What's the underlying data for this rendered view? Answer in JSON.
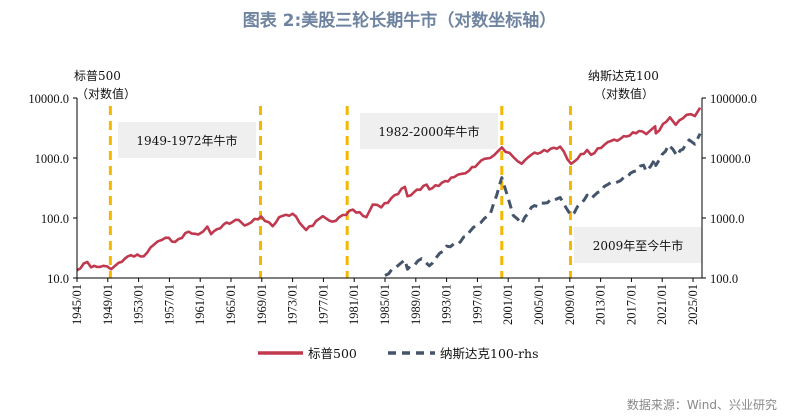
{
  "title": "图表 2:美股三轮长期牛市（对数坐标轴）",
  "source": "数据来源：Wind、兴业研究",
  "chart_data": {
    "type": "line",
    "title": "图表 2:美股三轮长期牛市（对数坐标轴）",
    "left_axis": {
      "label_line1": "标普500",
      "label_line2": "（对数值）",
      "scale": "log",
      "range": [
        10,
        10000
      ],
      "ticks": [
        "10000.0",
        "1000.0",
        "100.0",
        "10.0"
      ],
      "tick_values": [
        10000,
        1000,
        100,
        10
      ]
    },
    "right_axis": {
      "label_line1": "纳斯达克100",
      "label_line2": "（对数值）",
      "scale": "log",
      "range": [
        100,
        100000
      ],
      "ticks": [
        "100000.0",
        "10000.0",
        "1000.0",
        "100.0"
      ],
      "tick_values": [
        100000,
        10000,
        1000,
        100
      ]
    },
    "x_range": [
      "1945-01",
      "2026-03"
    ],
    "x_ticks": [
      "1945/01",
      "1949/01",
      "1953/01",
      "1957/01",
      "1961/01",
      "1965/01",
      "1969/01",
      "1973/01",
      "1977/01",
      "1981/01",
      "1985/01",
      "1989/01",
      "1993/01",
      "1997/01",
      "2001/01",
      "2005/01",
      "2009/01",
      "2013/01",
      "2017/01",
      "2021/01",
      "2025/01"
    ],
    "legend_position": "bottom",
    "grid": false,
    "series": [
      {
        "name": "标普500",
        "axis": "left",
        "color": "#c0394f",
        "style": "solid",
        "points": [
          [
            "1945-01",
            13.5
          ],
          [
            "1946-05",
            18.5
          ],
          [
            "1946-11",
            15
          ],
          [
            "1948-06",
            16
          ],
          [
            "1949-06",
            14
          ],
          [
            "1950-06",
            18
          ],
          [
            "1952-01",
            24
          ],
          [
            "1953-09",
            23
          ],
          [
            "1955-01",
            36
          ],
          [
            "1956-07",
            47
          ],
          [
            "1957-10",
            40
          ],
          [
            "1959-07",
            59
          ],
          [
            "1960-10",
            53
          ],
          [
            "1961-12",
            72
          ],
          [
            "1962-06",
            54
          ],
          [
            "1964-01",
            77
          ],
          [
            "1966-01",
            93
          ],
          [
            "1966-10",
            75
          ],
          [
            "1968-12",
            106
          ],
          [
            "1970-06",
            73
          ],
          [
            "1971-04",
            103
          ],
          [
            "1973-01",
            118
          ],
          [
            "1974-10",
            63
          ],
          [
            "1976-12",
            107
          ],
          [
            "1978-03",
            87
          ],
          [
            "1980-11",
            138
          ],
          [
            "1982-08",
            103
          ],
          [
            "1983-06",
            168
          ],
          [
            "1984-07",
            150
          ],
          [
            "1987-08",
            330
          ],
          [
            "1987-12",
            230
          ],
          [
            "1990-06",
            360
          ],
          [
            "1990-10",
            300
          ],
          [
            "1994-01",
            480
          ],
          [
            "1995-12",
            615
          ],
          [
            "1997-12",
            970
          ],
          [
            "1998-09",
            1000
          ],
          [
            "2000-03",
            1500
          ],
          [
            "2001-09",
            1040
          ],
          [
            "2002-10",
            800
          ],
          [
            "2004-01",
            1130
          ],
          [
            "2007-10",
            1550
          ],
          [
            "2009-03",
            800
          ],
          [
            "2011-04",
            1360
          ],
          [
            "2011-10",
            1130
          ],
          [
            "2013-12",
            1840
          ],
          [
            "2015-08",
            2100
          ],
          [
            "2018-01",
            2820
          ],
          [
            "2018-12",
            2500
          ],
          [
            "2020-02",
            3380
          ],
          [
            "2020-03",
            2580
          ],
          [
            "2022-01",
            4770
          ],
          [
            "2022-10",
            3580
          ],
          [
            "2024-03",
            5250
          ],
          [
            "2025-04",
            5000
          ],
          [
            "2025-12",
            6900
          ]
        ]
      },
      {
        "name": "纳斯达克100-rhs",
        "axis": "right",
        "color": "#44546a",
        "style": "dashed",
        "points": [
          [
            "1985-01",
            110
          ],
          [
            "1986-06",
            150
          ],
          [
            "1987-08",
            200
          ],
          [
            "1987-12",
            140
          ],
          [
            "1989-10",
            210
          ],
          [
            "1990-10",
            160
          ],
          [
            "1993-01",
            340
          ],
          [
            "1994-06",
            360
          ],
          [
            "1996-01",
            590
          ],
          [
            "1997-12",
            990
          ],
          [
            "1998-09",
            1150
          ],
          [
            "1999-12",
            3700
          ],
          [
            "2000-03",
            4700
          ],
          [
            "2000-12",
            2300
          ],
          [
            "2001-09",
            1100
          ],
          [
            "2002-10",
            800
          ],
          [
            "2004-01",
            1500
          ],
          [
            "2007-10",
            2200
          ],
          [
            "2009-03",
            1100
          ],
          [
            "2011-04",
            2400
          ],
          [
            "2011-10",
            2100
          ],
          [
            "2013-12",
            3600
          ],
          [
            "2015-08",
            4200
          ],
          [
            "2018-08",
            7600
          ],
          [
            "2018-12",
            6000
          ],
          [
            "2020-02",
            9700
          ],
          [
            "2020-03",
            7500
          ],
          [
            "2021-11",
            16500
          ],
          [
            "2022-12",
            10900
          ],
          [
            "2024-07",
            20000
          ],
          [
            "2025-04",
            17000
          ],
          [
            "2025-12",
            25500
          ]
        ]
      }
    ],
    "annotations": [
      {
        "text": "1949-1972年牛市"
      },
      {
        "text": "1982-2000年牛市"
      },
      {
        "text": "2009年至今牛市"
      }
    ],
    "bull_market_markers": [
      "1949-05",
      "1968-11",
      "1980-02",
      "2000-03",
      "2009-02"
    ],
    "marker_color": "#f5b800",
    "annotation_box_color": "#efefef"
  }
}
